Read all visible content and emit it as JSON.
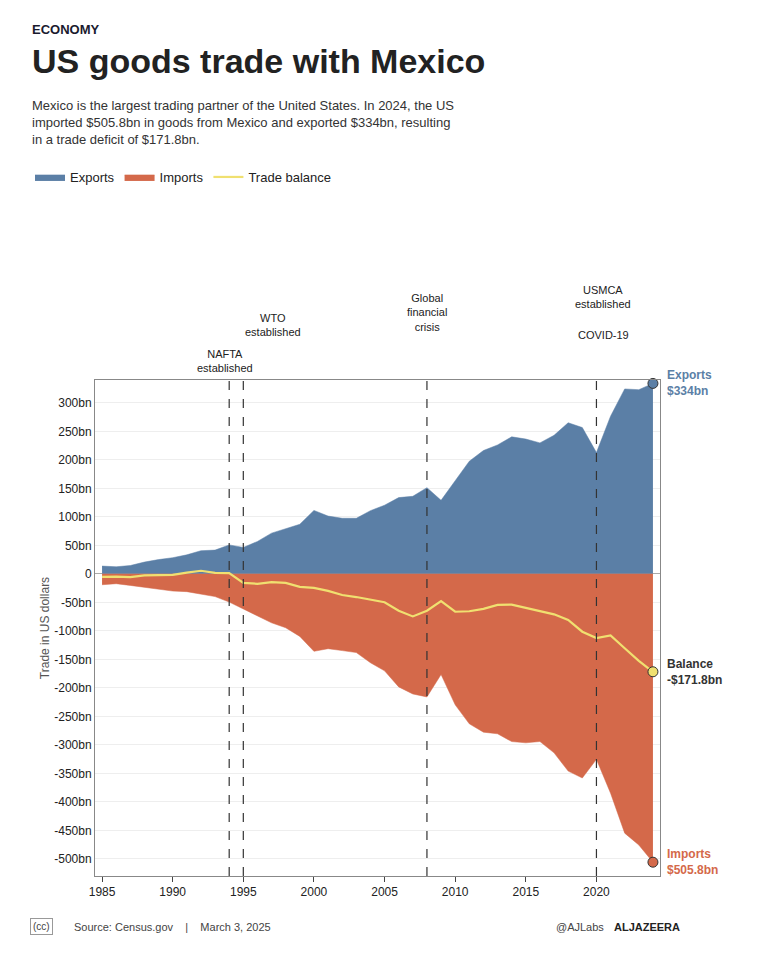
{
  "chart_data": {
    "type": "area",
    "supertitle": "ECONOMY",
    "title": "US goods trade with Mexico",
    "subtitle": "Mexico is the largest trading partner of the United States. In 2024, the US\nimported $505.8bn in goods from Mexico and exported $334bn, resulting\nin a trade deficit of $171.8bn.",
    "ylabel": "Trade in US dollars",
    "x": [
      1985,
      1986,
      1987,
      1988,
      1989,
      1990,
      1991,
      1992,
      1993,
      1994,
      1995,
      1996,
      1997,
      1998,
      1999,
      2000,
      2001,
      2002,
      2003,
      2004,
      2005,
      2006,
      2007,
      2008,
      2009,
      2010,
      2011,
      2012,
      2013,
      2014,
      2015,
      2016,
      2017,
      2018,
      2019,
      2020,
      2021,
      2022,
      2023,
      2024
    ],
    "series": [
      {
        "name": "Exports",
        "type": "area",
        "color": "#5B7FA6",
        "end_label": "Exports\n$334bn",
        "values": [
          13.6,
          12.4,
          14.6,
          20.6,
          25.0,
          28.3,
          33.3,
          40.6,
          41.6,
          50.8,
          46.3,
          56.8,
          71.4,
          78.8,
          86.9,
          111.3,
          101.3,
          97.5,
          97.4,
          110.8,
          120.4,
          133.7,
          136.0,
          151.2,
          128.9,
          163.3,
          197.5,
          216.3,
          226.1,
          240.3,
          236.4,
          229.7,
          243.0,
          265.0,
          256.6,
          212.7,
          276.5,
          324.3,
          323.0,
          334.0
        ]
      },
      {
        "name": "Imports",
        "type": "area",
        "color": "#D4694A",
        "end_label": "Imports\n$505.8bn",
        "values": [
          -19.1,
          -17.3,
          -20.3,
          -23.3,
          -27.2,
          -30.2,
          -31.2,
          -35.2,
          -39.9,
          -49.5,
          -62.1,
          -74.3,
          -85.9,
          -94.6,
          -109.7,
          -135.9,
          -131.3,
          -134.6,
          -138.1,
          -155.9,
          -170.2,
          -198.3,
          -210.7,
          -215.9,
          -176.6,
          -229.8,
          -263.1,
          -277.7,
          -280.6,
          -294.2,
          -296.4,
          -294.1,
          -314.0,
          -346.0,
          -358.1,
          -325.4,
          -384.7,
          -454.8,
          -475.6,
          -505.8
        ]
      },
      {
        "name": "Trade balance",
        "type": "line",
        "color": "#F0E070",
        "end_label": "Balance\n-$171.8bn",
        "values": [
          -5.5,
          -4.9,
          -5.7,
          -2.7,
          -2.2,
          -1.9,
          2.1,
          5.4,
          1.7,
          1.3,
          -15.8,
          -17.5,
          -14.5,
          -15.8,
          -22.8,
          -24.6,
          -30.0,
          -37.1,
          -40.7,
          -45.1,
          -49.8,
          -64.6,
          -74.7,
          -64.7,
          -47.7,
          -66.5,
          -65.6,
          -61.4,
          -54.5,
          -53.9,
          -59.8,
          -64.4,
          -71.0,
          -81.0,
          -101.5,
          -112.7,
          -108.2,
          -130.5,
          -152.6,
          -171.8
        ]
      }
    ],
    "annotations": [
      {
        "text": "NAFTA\nestablished",
        "x": 1994
      },
      {
        "text": "WTO\nestablished",
        "x": 1995
      },
      {
        "text": "Global\nfinancial\ncrisis",
        "x": 2008
      },
      {
        "text": "USMCA\nestablished",
        "x": 2020
      },
      {
        "text": "COVID-19",
        "x": 2020
      }
    ],
    "footer": [
      "(cc)",
      "Source: Census.gov    |    March 3, 2025",
      "@AJLabs",
      "ALJAZEERA"
    ],
    "xlim": [
      1984.5,
      2024.5
    ],
    "xticks": [
      1985,
      1990,
      1995,
      2000,
      2005,
      2010,
      2015,
      2020
    ],
    "ylim": [
      -530,
      340
    ],
    "yticks": [
      {
        "value": 300,
        "label": "300bn"
      },
      {
        "value": 250,
        "label": "250bn"
      },
      {
        "value": 200,
        "label": "200bn"
      },
      {
        "value": 150,
        "label": "150bn"
      },
      {
        "value": 100,
        "label": "100bn"
      },
      {
        "value": 50,
        "label": "50bn"
      },
      0,
      {
        "value": -50,
        "label": "-50bn"
      },
      {
        "value": -100,
        "label": "-100bn"
      },
      {
        "value": -150,
        "label": "-150bn"
      },
      {
        "value": -200,
        "label": "-200bn"
      },
      {
        "value": -250,
        "label": "-250bn"
      },
      {
        "value": -300,
        "label": "-300bn"
      },
      {
        "value": -350,
        "label": "-350bn"
      },
      {
        "value": -400,
        "label": "-400bn"
      },
      {
        "value": -450,
        "label": "-450bn"
      },
      {
        "value": -500,
        "label": "-500bn"
      }
    ],
    "grid": true,
    "legend": "top"
  }
}
